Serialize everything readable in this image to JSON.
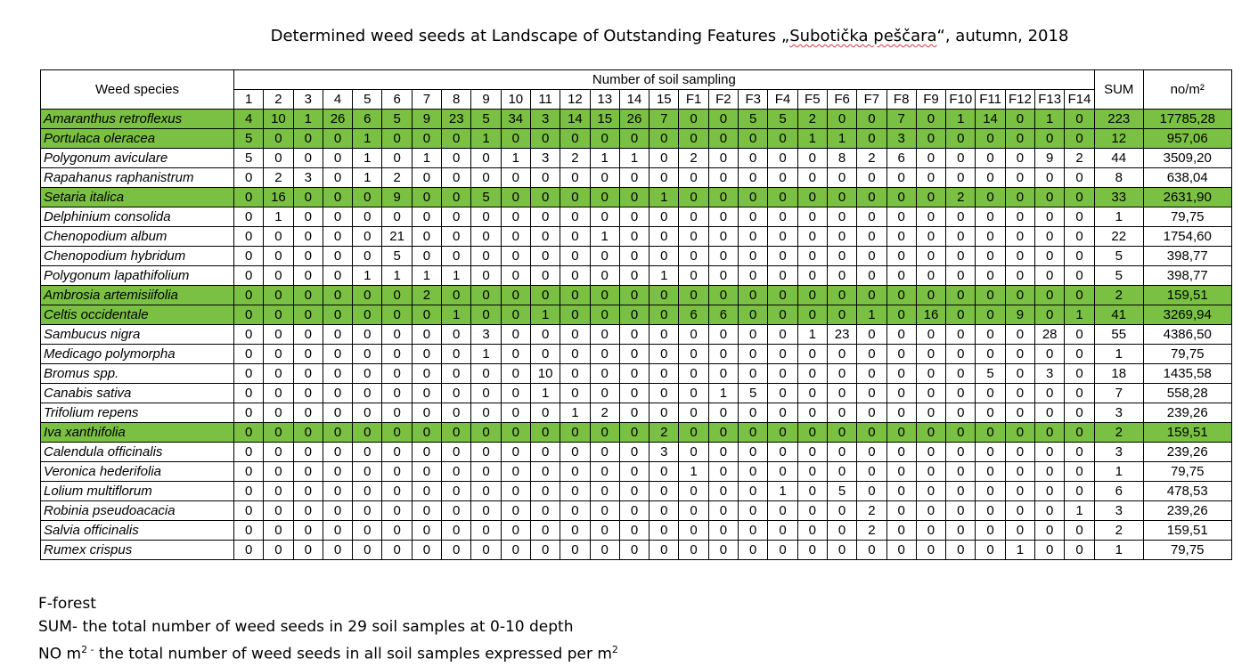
{
  "title": {
    "text_before": "Determined weed seeds at Landscape of Outstanding Features „",
    "text_highlight": "Subotička peščara",
    "text_after": "“, autumn, 2018"
  },
  "table": {
    "header_species": "Weed species",
    "header_group": "Number of soil sampling",
    "header_sum": "SUM",
    "header_density": "no/m²",
    "columns": [
      "1",
      "2",
      "3",
      "4",
      "5",
      "6",
      "7",
      "8",
      "9",
      "10",
      "11",
      "12",
      "13",
      "14",
      "15",
      "F1",
      "F2",
      "F3",
      "F4",
      "F5",
      "F6",
      "F7",
      "F8",
      "F9",
      "F10",
      "F11",
      "F12",
      "F13",
      "F14"
    ],
    "highlight_color": "#7ac143",
    "rows": [
      {
        "species": "Amaranthus retroflexus",
        "highlight": true,
        "values": [
          "4",
          "10",
          "1",
          "26",
          "6",
          "5",
          "9",
          "23",
          "5",
          "34",
          "3",
          "14",
          "15",
          "26",
          "7",
          "0",
          "0",
          "5",
          "5",
          "2",
          "0",
          "0",
          "7",
          "0",
          "1",
          "14",
          "0",
          "1",
          "0"
        ],
        "sum": "223",
        "density": "17785,28"
      },
      {
        "species": "Portulaca oleracea",
        "highlight": true,
        "values": [
          "5",
          "0",
          "0",
          "0",
          "1",
          "0",
          "0",
          "0",
          "1",
          "0",
          "0",
          "0",
          "0",
          "0",
          "0",
          "0",
          "0",
          "0",
          "0",
          "1",
          "1",
          "0",
          "3",
          "0",
          "0",
          "0",
          "0",
          "0",
          "0"
        ],
        "sum": "12",
        "density": "957,06"
      },
      {
        "species": "Polygonum aviculare",
        "highlight": false,
        "values": [
          "5",
          "0",
          "0",
          "0",
          "1",
          "0",
          "1",
          "0",
          "0",
          "1",
          "3",
          "2",
          "1",
          "1",
          "0",
          "2",
          "0",
          "0",
          "0",
          "0",
          "8",
          "2",
          "6",
          "0",
          "0",
          "0",
          "0",
          "9",
          "2"
        ],
        "sum": "44",
        "density": "3509,20"
      },
      {
        "species": "Rapahanus raphanistrum",
        "highlight": false,
        "values": [
          "0",
          "2",
          "3",
          "0",
          "1",
          "2",
          "0",
          "0",
          "0",
          "0",
          "0",
          "0",
          "0",
          "0",
          "0",
          "0",
          "0",
          "0",
          "0",
          "0",
          "0",
          "0",
          "0",
          "0",
          "0",
          "0",
          "0",
          "0",
          "0"
        ],
        "sum": "8",
        "density": "638,04"
      },
      {
        "species": "Setaria italica",
        "highlight": true,
        "values": [
          "0",
          "16",
          "0",
          "0",
          "0",
          "9",
          "0",
          "0",
          "5",
          "0",
          "0",
          "0",
          "0",
          "0",
          "1",
          "0",
          "0",
          "0",
          "0",
          "0",
          "0",
          "0",
          "0",
          "0",
          "2",
          "0",
          "0",
          "0",
          "0"
        ],
        "sum": "33",
        "density": "2631,90"
      },
      {
        "species": "Delphinium consolida",
        "highlight": false,
        "values": [
          "0",
          "1",
          "0",
          "0",
          "0",
          "0",
          "0",
          "0",
          "0",
          "0",
          "0",
          "0",
          "0",
          "0",
          "0",
          "0",
          "0",
          "0",
          "0",
          "0",
          "0",
          "0",
          "0",
          "0",
          "0",
          "0",
          "0",
          "0",
          "0"
        ],
        "sum": "1",
        "density": "79,75"
      },
      {
        "species": "Chenopodium album",
        "highlight": false,
        "values": [
          "0",
          "0",
          "0",
          "0",
          "0",
          "21",
          "0",
          "0",
          "0",
          "0",
          "0",
          "0",
          "1",
          "0",
          "0",
          "0",
          "0",
          "0",
          "0",
          "0",
          "0",
          "0",
          "0",
          "0",
          "0",
          "0",
          "0",
          "0",
          "0"
        ],
        "sum": "22",
        "density": "1754,60"
      },
      {
        "species": "Chenopodium hybridum",
        "highlight": false,
        "values": [
          "0",
          "0",
          "0",
          "0",
          "0",
          "5",
          "0",
          "0",
          "0",
          "0",
          "0",
          "0",
          "0",
          "0",
          "0",
          "0",
          "0",
          "0",
          "0",
          "0",
          "0",
          "0",
          "0",
          "0",
          "0",
          "0",
          "0",
          "0",
          "0"
        ],
        "sum": "5",
        "density": "398,77"
      },
      {
        "species": "Polygonum lapathifolium",
        "highlight": false,
        "values": [
          "0",
          "0",
          "0",
          "0",
          "1",
          "1",
          "1",
          "1",
          "0",
          "0",
          "0",
          "0",
          "0",
          "0",
          "1",
          "0",
          "0",
          "0",
          "0",
          "0",
          "0",
          "0",
          "0",
          "0",
          "0",
          "0",
          "0",
          "0",
          "0"
        ],
        "sum": "5",
        "density": "398,77"
      },
      {
        "species": "Ambrosia artemisiifolia",
        "highlight": true,
        "values": [
          "0",
          "0",
          "0",
          "0",
          "0",
          "0",
          "2",
          "0",
          "0",
          "0",
          "0",
          "0",
          "0",
          "0",
          "0",
          "0",
          "0",
          "0",
          "0",
          "0",
          "0",
          "0",
          "0",
          "0",
          "0",
          "0",
          "0",
          "0",
          "0"
        ],
        "sum": "2",
        "density": "159,51"
      },
      {
        "species": "Celtis occidentale",
        "highlight": true,
        "values": [
          "0",
          "0",
          "0",
          "0",
          "0",
          "0",
          "0",
          "1",
          "0",
          "0",
          "1",
          "0",
          "0",
          "0",
          "0",
          "6",
          "6",
          "0",
          "0",
          "0",
          "0",
          "1",
          "0",
          "16",
          "0",
          "0",
          "9",
          "0",
          "1"
        ],
        "sum": "41",
        "density": "3269,94"
      },
      {
        "species": "Sambucus nigra",
        "highlight": false,
        "values": [
          "0",
          "0",
          "0",
          "0",
          "0",
          "0",
          "0",
          "0",
          "3",
          "0",
          "0",
          "0",
          "0",
          "0",
          "0",
          "0",
          "0",
          "0",
          "0",
          "1",
          "23",
          "0",
          "0",
          "0",
          "0",
          "0",
          "0",
          "28",
          "0"
        ],
        "sum": "55",
        "density": "4386,50"
      },
      {
        "species": "Medicago polymorpha",
        "highlight": false,
        "values": [
          "0",
          "0",
          "0",
          "0",
          "0",
          "0",
          "0",
          "0",
          "1",
          "0",
          "0",
          "0",
          "0",
          "0",
          "0",
          "0",
          "0",
          "0",
          "0",
          "0",
          "0",
          "0",
          "0",
          "0",
          "0",
          "0",
          "0",
          "0",
          "0"
        ],
        "sum": "1",
        "density": "79,75"
      },
      {
        "species": "Bromus spp.",
        "highlight": false,
        "values": [
          "0",
          "0",
          "0",
          "0",
          "0",
          "0",
          "0",
          "0",
          "0",
          "0",
          "10",
          "0",
          "0",
          "0",
          "0",
          "0",
          "0",
          "0",
          "0",
          "0",
          "0",
          "0",
          "0",
          "0",
          "0",
          "5",
          "0",
          "3",
          "0"
        ],
        "sum": "18",
        "density": "1435,58"
      },
      {
        "species": "Canabis sativa",
        "highlight": false,
        "values": [
          "0",
          "0",
          "0",
          "0",
          "0",
          "0",
          "0",
          "0",
          "0",
          "0",
          "1",
          "0",
          "0",
          "0",
          "0",
          "0",
          "1",
          "5",
          "0",
          "0",
          "0",
          "0",
          "0",
          "0",
          "0",
          "0",
          "0",
          "0",
          "0"
        ],
        "sum": "7",
        "density": "558,28"
      },
      {
        "species": "Trifolium repens",
        "highlight": false,
        "values": [
          "0",
          "0",
          "0",
          "0",
          "0",
          "0",
          "0",
          "0",
          "0",
          "0",
          "0",
          "1",
          "2",
          "0",
          "0",
          "0",
          "0",
          "0",
          "0",
          "0",
          "0",
          "0",
          "0",
          "0",
          "0",
          "0",
          "0",
          "0",
          "0"
        ],
        "sum": "3",
        "density": "239,26"
      },
      {
        "species": "Iva xanthifolia",
        "highlight": true,
        "values": [
          "0",
          "0",
          "0",
          "0",
          "0",
          "0",
          "0",
          "0",
          "0",
          "0",
          "0",
          "0",
          "0",
          "0",
          "2",
          "0",
          "0",
          "0",
          "0",
          "0",
          "0",
          "0",
          "0",
          "0",
          "0",
          "0",
          "0",
          "0",
          "0"
        ],
        "sum": "2",
        "density": "159,51"
      },
      {
        "species": "Calendula officinalis",
        "highlight": false,
        "values": [
          "0",
          "0",
          "0",
          "0",
          "0",
          "0",
          "0",
          "0",
          "0",
          "0",
          "0",
          "0",
          "0",
          "0",
          "3",
          "0",
          "0",
          "0",
          "0",
          "0",
          "0",
          "0",
          "0",
          "0",
          "0",
          "0",
          "0",
          "0",
          "0"
        ],
        "sum": "3",
        "density": "239,26"
      },
      {
        "species": "Veronica hederifolia",
        "highlight": false,
        "values": [
          "0",
          "0",
          "0",
          "0",
          "0",
          "0",
          "0",
          "0",
          "0",
          "0",
          "0",
          "0",
          "0",
          "0",
          "0",
          "1",
          "0",
          "0",
          "0",
          "0",
          "0",
          "0",
          "0",
          "0",
          "0",
          "0",
          "0",
          "0",
          "0"
        ],
        "sum": "1",
        "density": "79,75"
      },
      {
        "species": "Lolium multiflorum",
        "highlight": false,
        "values": [
          "0",
          "0",
          "0",
          "0",
          "0",
          "0",
          "0",
          "0",
          "0",
          "0",
          "0",
          "0",
          "0",
          "0",
          "0",
          "0",
          "0",
          "0",
          "1",
          "0",
          "5",
          "0",
          "0",
          "0",
          "0",
          "0",
          "0",
          "0",
          "0"
        ],
        "sum": "6",
        "density": "478,53"
      },
      {
        "species": "Robinia pseudoacacia",
        "highlight": false,
        "values": [
          "0",
          "0",
          "0",
          "0",
          "0",
          "0",
          "0",
          "0",
          "0",
          "0",
          "0",
          "0",
          "0",
          "0",
          "0",
          "0",
          "0",
          "0",
          "0",
          "0",
          "0",
          "2",
          "0",
          "0",
          "0",
          "0",
          "0",
          "0",
          "1"
        ],
        "sum": "3",
        "density": "239,26"
      },
      {
        "species": "Salvia officinalis",
        "highlight": false,
        "values": [
          "0",
          "0",
          "0",
          "0",
          "0",
          "0",
          "0",
          "0",
          "0",
          "0",
          "0",
          "0",
          "0",
          "0",
          "0",
          "0",
          "0",
          "0",
          "0",
          "0",
          "0",
          "2",
          "0",
          "0",
          "0",
          "0",
          "0",
          "0",
          "0"
        ],
        "sum": "2",
        "density": "159,51"
      },
      {
        "species": "Rumex crispus",
        "highlight": false,
        "values": [
          "0",
          "0",
          "0",
          "0",
          "0",
          "0",
          "0",
          "0",
          "0",
          "0",
          "0",
          "0",
          "0",
          "0",
          "0",
          "0",
          "0",
          "0",
          "0",
          "0",
          "0",
          "0",
          "0",
          "0",
          "0",
          "0",
          "1",
          "0",
          "0"
        ],
        "sum": "1",
        "density": "79,75"
      }
    ]
  },
  "notes": {
    "forest": "F-forest",
    "sum": "SUM- the total number of weed seeds in 29 soil samples at 0-10 depth",
    "density_prefix": "NO m",
    "density_prefix_sup": "2 -",
    "density_text": " the total number of weed seeds in all soil samples expressed per m",
    "density_text_sup": "2"
  }
}
